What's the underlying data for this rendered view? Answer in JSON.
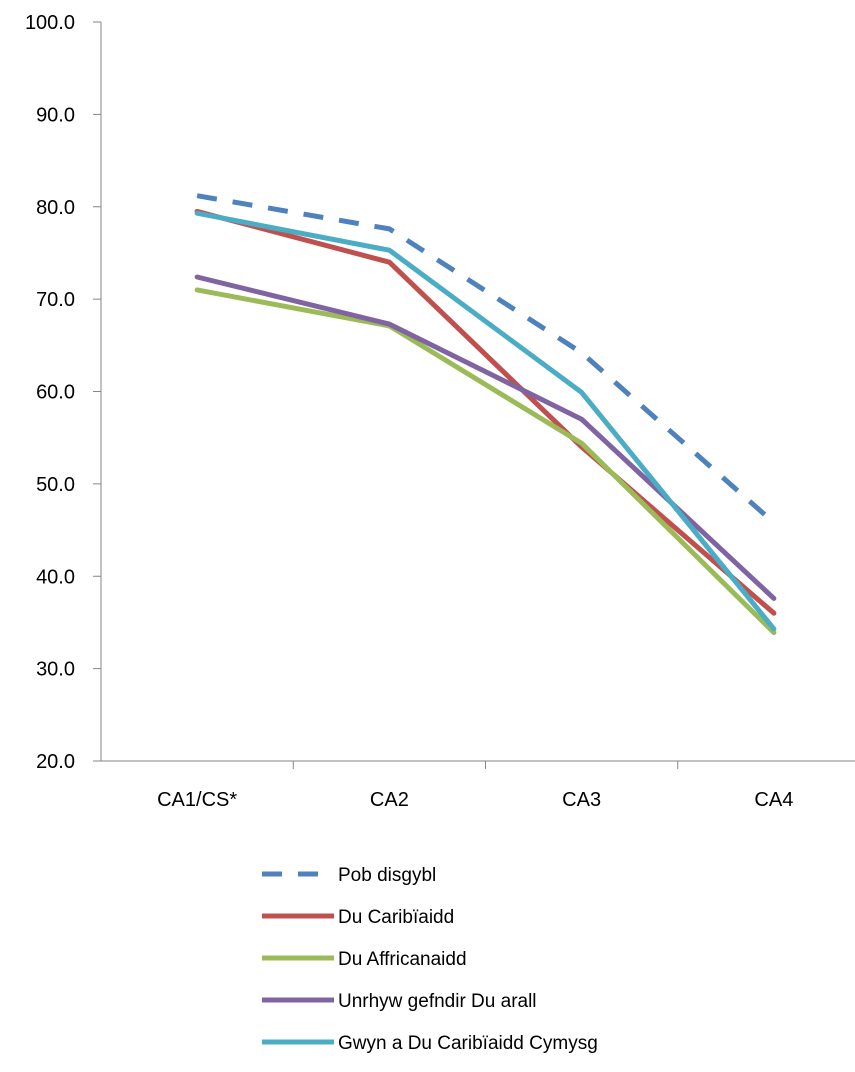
{
  "chart_data": {
    "type": "line",
    "title": "",
    "xlabel": "",
    "ylabel": "",
    "categories": [
      "CA1/CS*",
      "CA2",
      "CA3",
      "CA4"
    ],
    "ylim": [
      20,
      100
    ],
    "yticks": [
      "20.0",
      "30.0",
      "40.0",
      "50.0",
      "60.0",
      "70.0",
      "80.0",
      "90.0",
      "100.0"
    ],
    "grid": false,
    "legend_position": "bottom",
    "series": [
      {
        "name": "Pob disgybl",
        "values": [
          81.2,
          77.6,
          64.2,
          45.8
        ],
        "color": "#4F81BD",
        "dashed": true
      },
      {
        "name": "Du Caribïaidd",
        "values": [
          79.5,
          74.0,
          54.0,
          36.0
        ],
        "color": "#C0504D",
        "dashed": false
      },
      {
        "name": "Du Affricanaidd",
        "values": [
          71.0,
          67.1,
          54.4,
          33.9
        ],
        "color": "#9BBB59",
        "dashed": false
      },
      {
        "name": "Unrhyw gefndir Du arall",
        "values": [
          72.4,
          67.3,
          57.0,
          37.6
        ],
        "color": "#8064A2",
        "dashed": false
      },
      {
        "name": "Gwyn a Du Caribïaidd Cymysg",
        "values": [
          79.3,
          75.3,
          59.9,
          34.3
        ],
        "color": "#4BACC6",
        "dashed": false
      }
    ]
  }
}
